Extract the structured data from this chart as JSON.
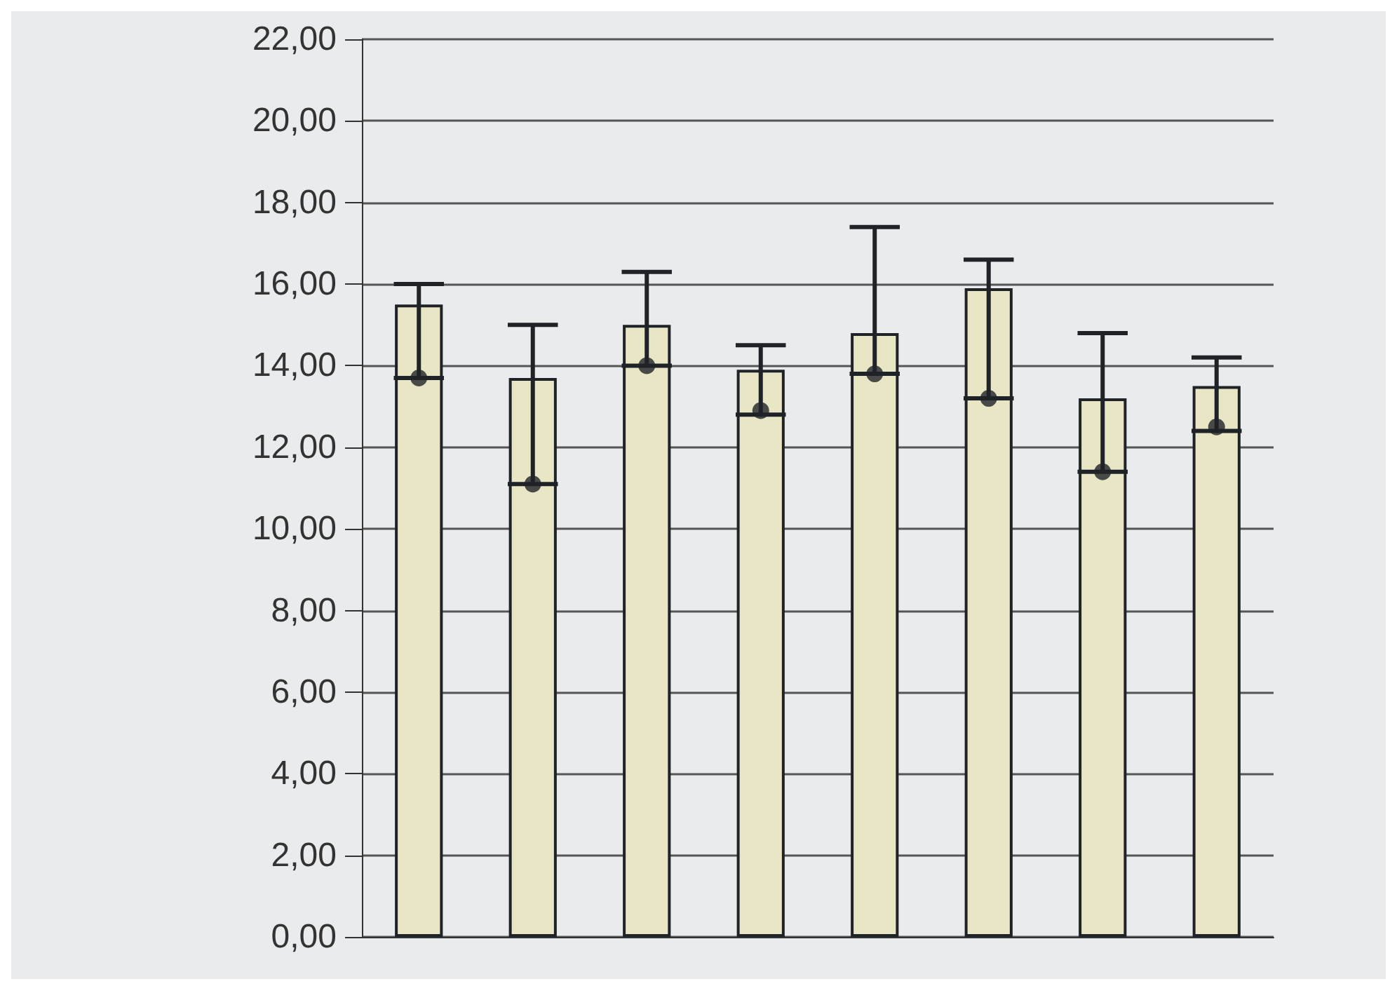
{
  "chart_data": {
    "type": "bar",
    "categories": [
      null,
      null,
      null,
      null,
      null,
      null,
      null,
      null
    ],
    "series": [
      {
        "color": "#e8e6c4",
        "values": [
          15.5,
          13.7,
          15.0,
          13.9,
          14.8,
          15.9,
          13.2,
          13.5
        ]
      },
      {
        "type": "scatter",
        "color": "#1f2328",
        "values": [
          13.7,
          11.1,
          14.0,
          12.9,
          13.8,
          13.2,
          11.4,
          12.5
        ],
        "errors": [
          [
            13.7,
            16.0
          ],
          [
            11.1,
            15.0
          ],
          [
            14.0,
            16.3
          ],
          [
            12.8,
            14.5
          ],
          [
            13.8,
            17.4
          ],
          [
            13.2,
            16.6
          ],
          [
            11.4,
            14.8
          ],
          [
            12.4,
            14.2
          ]
        ]
      }
    ],
    "ylim": [
      0,
      22
    ],
    "yticks": [
      {
        "value": 0,
        "label": "0,00"
      },
      {
        "value": 2,
        "label": "2,00"
      },
      {
        "value": 4,
        "label": "4,00"
      },
      {
        "value": 6,
        "label": "6,00"
      },
      {
        "value": 8,
        "label": "8,00"
      },
      {
        "value": 10,
        "label": "10,00"
      },
      {
        "value": 12,
        "label": "12,00"
      },
      {
        "value": 14,
        "label": "14,00"
      },
      {
        "value": 16,
        "label": "16,00"
      },
      {
        "value": 18,
        "label": "18,00"
      },
      {
        "value": 20,
        "label": "20,00"
      },
      {
        "value": 22,
        "label": "22,00"
      }
    ],
    "grid": "y",
    "marker": "circle",
    "tick_labels": "y"
  }
}
